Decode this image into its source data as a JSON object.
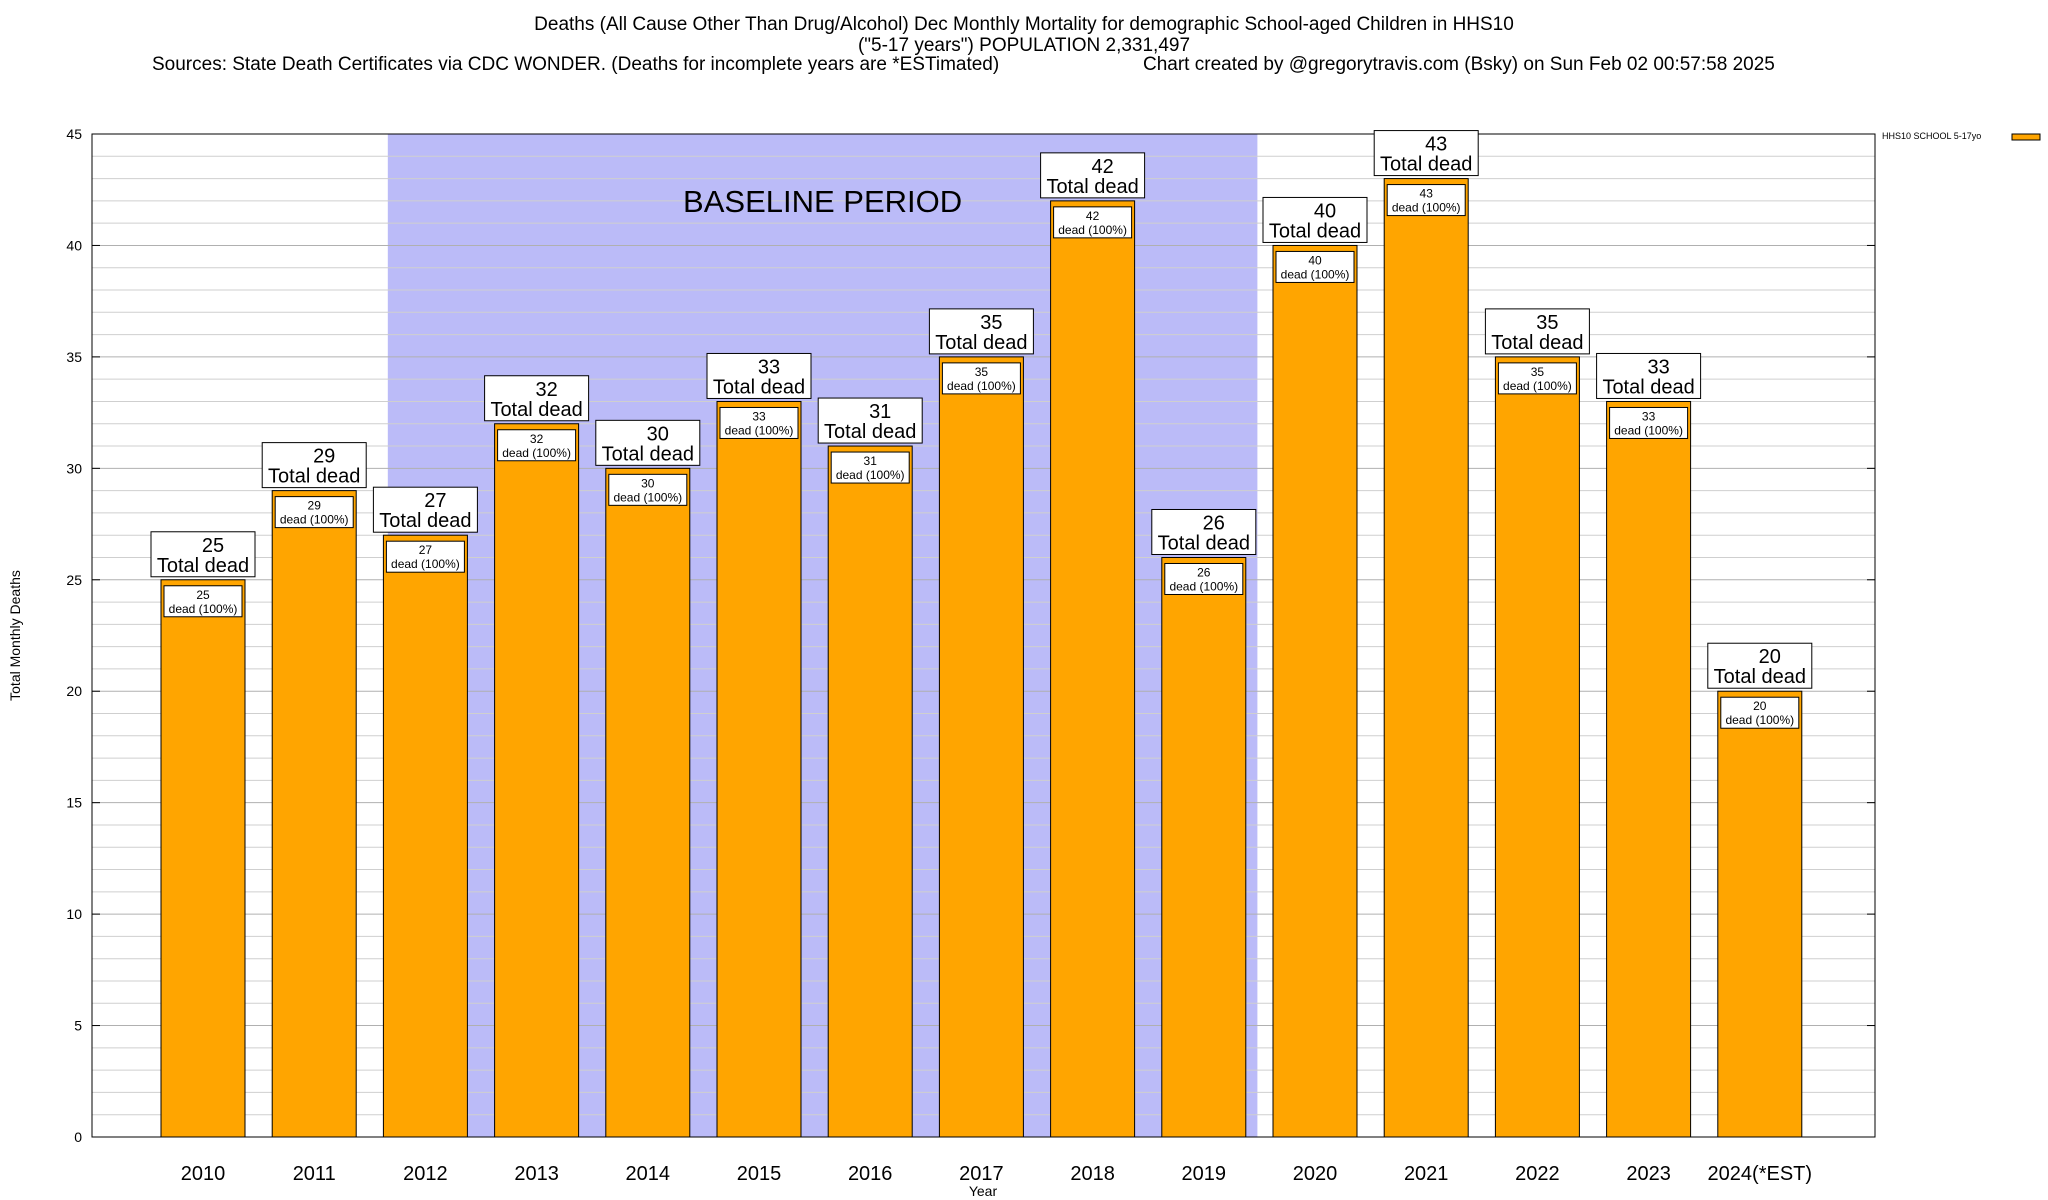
{
  "header": {
    "title_line1": "Deaths (All Cause Other Than Drug/Alcohol) Dec Monthly Mortality for demographic School-aged Children in HHS10",
    "title_line2": "(\"5-17 years\") POPULATION 2,331,497",
    "sources": "Sources: State Death Certificates via CDC WONDER. (Deaths for incomplete years are *ESTimated)",
    "credit": "Chart created by @gregorytravis.com (Bsky) on Sun Feb 02 00:57:58 2025"
  },
  "chart_data": {
    "type": "bar",
    "title": "Deaths (All Cause Other Than Drug/Alcohol) Dec Monthly Mortality for demographic School-aged Children in HHS10",
    "xlabel": "Year",
    "ylabel": "Total Monthly Deaths",
    "ylim": [
      0,
      45
    ],
    "yticks": [
      0,
      5,
      10,
      15,
      20,
      25,
      30,
      35,
      40,
      45
    ],
    "grid": true,
    "legend_position": "top-right",
    "categories": [
      "2010",
      "2011",
      "2012",
      "2013",
      "2014",
      "2015",
      "2016",
      "2017",
      "2018",
      "2019",
      "2020",
      "2021",
      "2022",
      "2023",
      "2024(*EST)"
    ],
    "series": [
      {
        "name": "HHS10 SCHOOL 5-17yo",
        "color": "#ffa500",
        "values": [
          25,
          29,
          27,
          32,
          30,
          33,
          31,
          35,
          42,
          26,
          40,
          43,
          35,
          33,
          20
        ]
      }
    ],
    "total_label_suffix": "Total dead",
    "inner_label_suffix": "dead (100%)",
    "shaded_region": {
      "label": "BASELINE PERIOD",
      "from_category": "2012",
      "to_category": "2019",
      "color": "#bbbbf8"
    }
  }
}
